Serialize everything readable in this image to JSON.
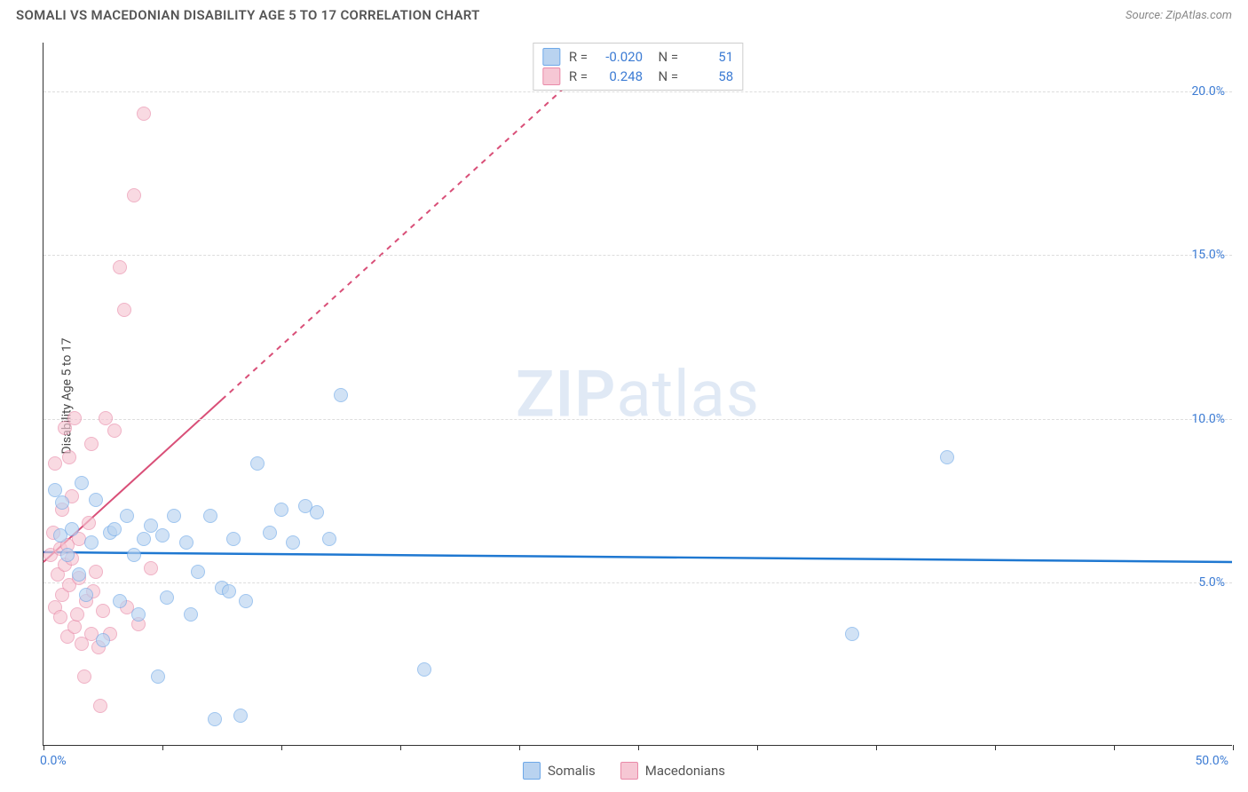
{
  "title": "SOMALI VS MACEDONIAN DISABILITY AGE 5 TO 17 CORRELATION CHART",
  "source": "Source: ZipAtlas.com",
  "ylabel": "Disability Age 5 to 17",
  "watermark": "ZIPatlas",
  "chart": {
    "type": "scatter",
    "xlim": [
      0,
      50
    ],
    "ylim": [
      0,
      21.5
    ],
    "xticks": [
      0,
      5,
      10,
      15,
      20,
      25,
      30,
      35,
      40,
      45,
      50
    ],
    "xtick_labels_shown": {
      "0": "0.0%",
      "50": "50.0%"
    },
    "ygrid": [
      5,
      10,
      15,
      20
    ],
    "ytick_labels": {
      "5": "5.0%",
      "10": "10.0%",
      "15": "15.0%",
      "20": "20.0%"
    },
    "background_color": "#ffffff",
    "grid_color": "#dddddd",
    "axis_color": "#333333",
    "tick_label_color": "#3d7cd4",
    "point_radius": 8,
    "point_stroke_width": 1.5
  },
  "series": {
    "somalis": {
      "label": "Somalis",
      "fill": "#b9d3f0",
      "stroke": "#6ea8e8",
      "fill_opacity": 0.65,
      "stats": {
        "R": "-0.020",
        "N": "51"
      },
      "trend": {
        "color": "#1f78d1",
        "width": 2.5,
        "x1": 0,
        "y1": 5.9,
        "x2": 50,
        "y2": 5.6,
        "dash_after_x": null
      },
      "points": [
        [
          0.5,
          7.8
        ],
        [
          0.7,
          6.4
        ],
        [
          0.8,
          7.4
        ],
        [
          1.0,
          5.8
        ],
        [
          1.2,
          6.6
        ],
        [
          1.5,
          5.2
        ],
        [
          1.6,
          8.0
        ],
        [
          1.8,
          4.6
        ],
        [
          2.0,
          6.2
        ],
        [
          2.2,
          7.5
        ],
        [
          2.5,
          3.2
        ],
        [
          2.8,
          6.5
        ],
        [
          3.0,
          6.6
        ],
        [
          3.2,
          4.4
        ],
        [
          3.5,
          7.0
        ],
        [
          3.8,
          5.8
        ],
        [
          4.0,
          4.0
        ],
        [
          4.2,
          6.3
        ],
        [
          4.5,
          6.7
        ],
        [
          4.8,
          2.1
        ],
        [
          5.0,
          6.4
        ],
        [
          5.2,
          4.5
        ],
        [
          5.5,
          7.0
        ],
        [
          6.0,
          6.2
        ],
        [
          6.2,
          4.0
        ],
        [
          6.5,
          5.3
        ],
        [
          7.0,
          7.0
        ],
        [
          7.2,
          0.8
        ],
        [
          7.5,
          4.8
        ],
        [
          7.8,
          4.7
        ],
        [
          8.0,
          6.3
        ],
        [
          8.3,
          0.9
        ],
        [
          8.5,
          4.4
        ],
        [
          9.0,
          8.6
        ],
        [
          9.5,
          6.5
        ],
        [
          10.0,
          7.2
        ],
        [
          10.5,
          6.2
        ],
        [
          11.0,
          7.3
        ],
        [
          11.5,
          7.1
        ],
        [
          12.0,
          6.3
        ],
        [
          12.5,
          10.7
        ],
        [
          16.0,
          2.3
        ],
        [
          34.0,
          3.4
        ],
        [
          38.0,
          8.8
        ]
      ]
    },
    "macedonians": {
      "label": "Macedonians",
      "fill": "#f6c7d4",
      "stroke": "#e98aa8",
      "fill_opacity": 0.65,
      "stats": {
        "R": "0.248",
        "N": "58"
      },
      "trend": {
        "color": "#d94f78",
        "width": 2,
        "x1": 0,
        "y1": 5.6,
        "x2": 24,
        "y2": 21.5,
        "solid_to_x": 7.5,
        "dash": "6 6"
      },
      "points": [
        [
          0.3,
          5.8
        ],
        [
          0.4,
          6.5
        ],
        [
          0.5,
          4.2
        ],
        [
          0.5,
          8.6
        ],
        [
          0.6,
          5.2
        ],
        [
          0.7,
          6.0
        ],
        [
          0.7,
          3.9
        ],
        [
          0.8,
          7.2
        ],
        [
          0.8,
          4.6
        ],
        [
          0.9,
          5.5
        ],
        [
          0.9,
          9.7
        ],
        [
          1.0,
          6.1
        ],
        [
          1.0,
          3.3
        ],
        [
          1.1,
          8.8
        ],
        [
          1.1,
          4.9
        ],
        [
          1.2,
          5.7
        ],
        [
          1.2,
          7.6
        ],
        [
          1.3,
          10.0
        ],
        [
          1.3,
          3.6
        ],
        [
          1.4,
          4.0
        ],
        [
          1.5,
          5.1
        ],
        [
          1.5,
          6.3
        ],
        [
          1.6,
          3.1
        ],
        [
          1.7,
          2.1
        ],
        [
          1.8,
          4.4
        ],
        [
          1.9,
          6.8
        ],
        [
          2.0,
          3.4
        ],
        [
          2.0,
          9.2
        ],
        [
          2.1,
          4.7
        ],
        [
          2.2,
          5.3
        ],
        [
          2.3,
          3.0
        ],
        [
          2.4,
          1.2
        ],
        [
          2.5,
          4.1
        ],
        [
          2.6,
          10.0
        ],
        [
          2.8,
          3.4
        ],
        [
          3.0,
          9.6
        ],
        [
          3.2,
          14.6
        ],
        [
          3.4,
          13.3
        ],
        [
          3.5,
          4.2
        ],
        [
          3.8,
          16.8
        ],
        [
          4.0,
          3.7
        ],
        [
          4.2,
          19.3
        ],
        [
          4.5,
          5.4
        ]
      ]
    }
  },
  "stats_legend": [
    {
      "swatch_fill": "#b9d3f0",
      "swatch_stroke": "#6ea8e8",
      "R": "-0.020",
      "N": "51"
    },
    {
      "swatch_fill": "#f6c7d4",
      "swatch_stroke": "#e98aa8",
      "R": "0.248",
      "N": "58"
    }
  ],
  "bottom_legend": [
    {
      "swatch_fill": "#b9d3f0",
      "swatch_stroke": "#6ea8e8",
      "label": "Somalis"
    },
    {
      "swatch_fill": "#f6c7d4",
      "swatch_stroke": "#e98aa8",
      "label": "Macedonians"
    }
  ]
}
